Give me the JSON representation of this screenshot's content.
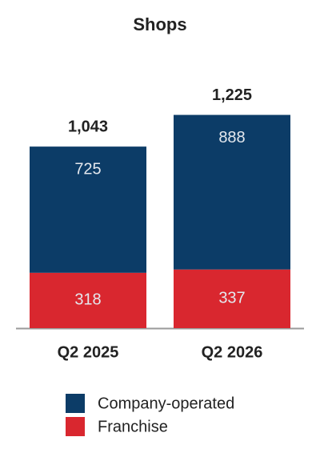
{
  "chart_data": {
    "type": "stacked_bar",
    "title": "Shops",
    "categories": [
      "Q2 2025",
      "Q2 2026"
    ],
    "series": [
      {
        "name": "Franchise",
        "color": "#d9272f",
        "values": [
          318,
          337
        ]
      },
      {
        "name": "Company-operated",
        "color": "#0c3c67",
        "values": [
          725,
          888
        ]
      }
    ],
    "totals": [
      1043,
      1225
    ],
    "total_labels": [
      "1,043",
      "1,225"
    ]
  }
}
